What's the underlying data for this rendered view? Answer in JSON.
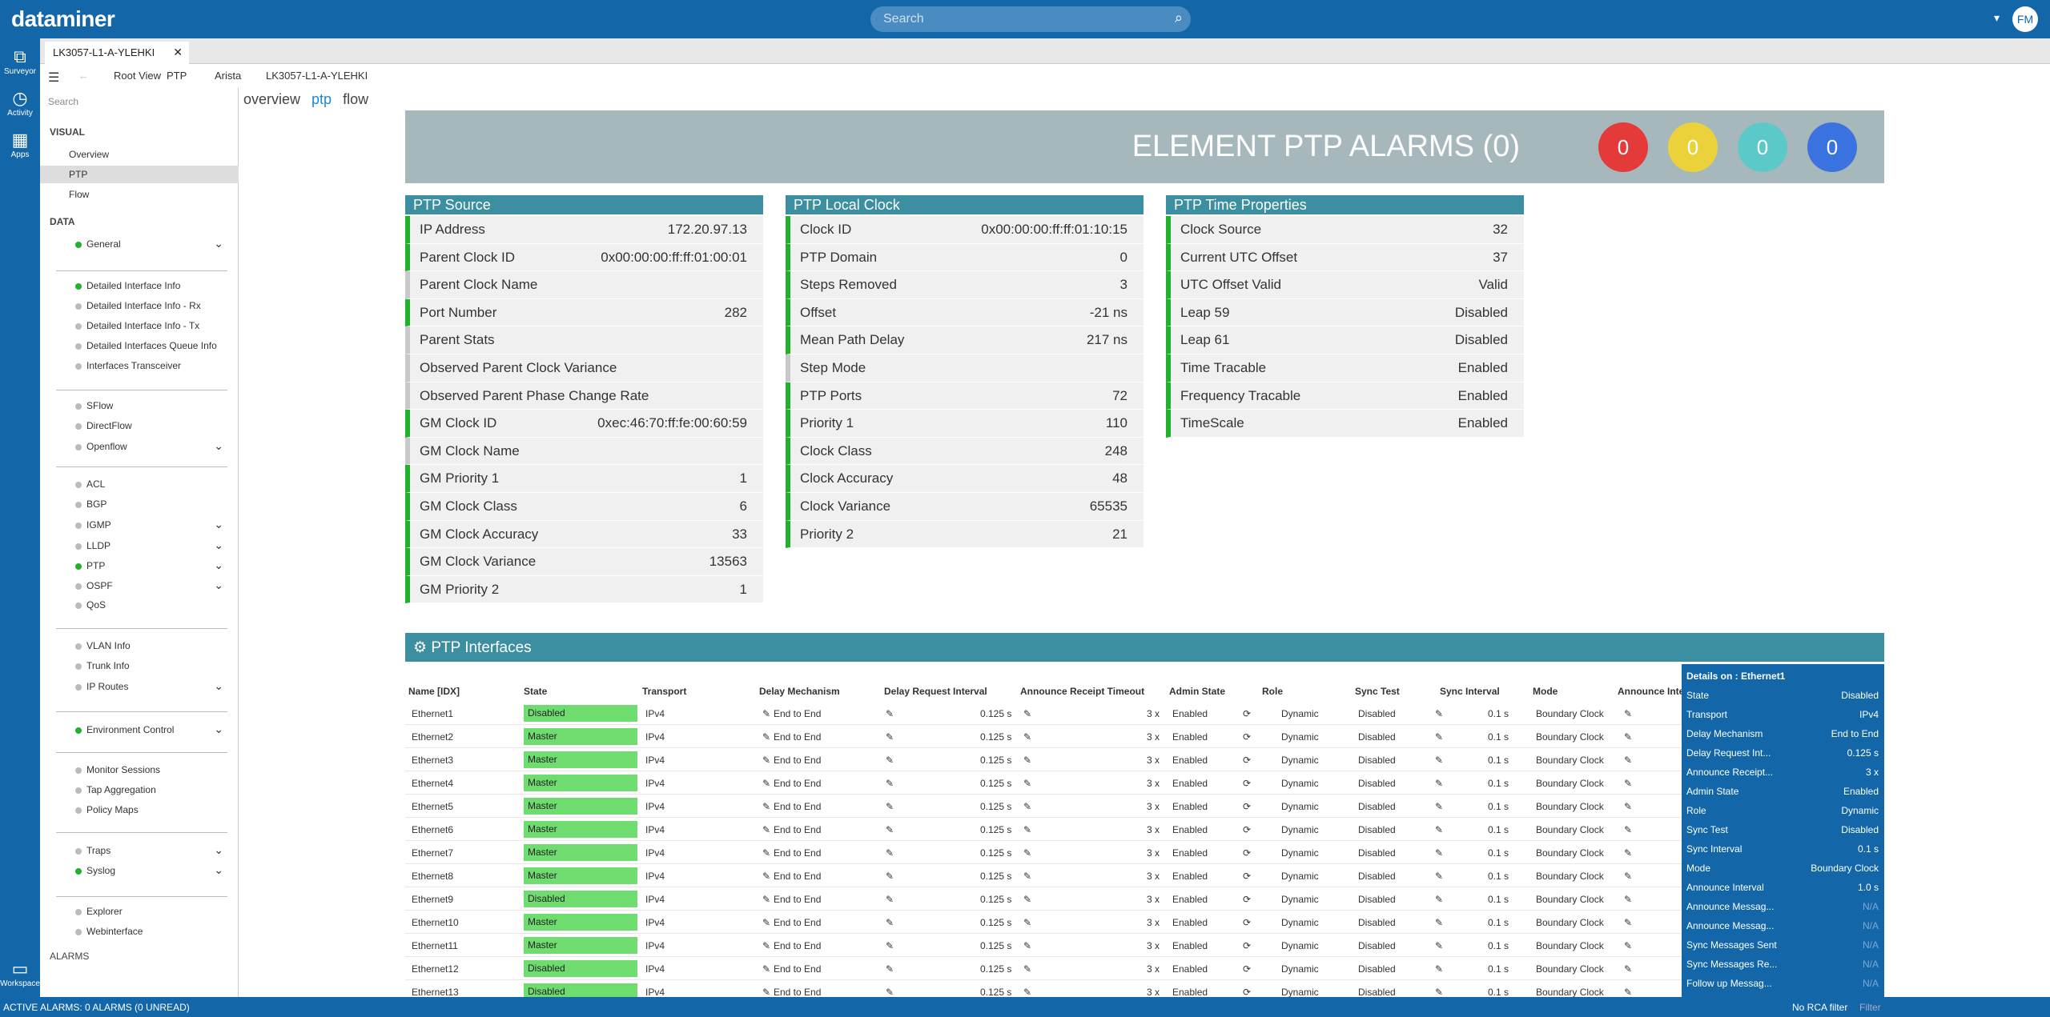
{
  "app": {
    "logo": "dataminer",
    "search_placeholder": "Search",
    "avatar": "FM"
  },
  "leftnav": [
    {
      "label": "Surveyor",
      "icon": "surveyor-icon"
    },
    {
      "label": "Activity",
      "icon": "activity-icon"
    },
    {
      "label": "Apps",
      "icon": "apps-icon"
    },
    {
      "label": "Workspace",
      "icon": "workspace-icon"
    }
  ],
  "tab": {
    "label": "LK3057-L1-A-YLEHKI"
  },
  "breadcrumb": [
    "Root View",
    "PTP",
    "Arista",
    "LK3057-L1-A-YLEHKI"
  ],
  "sidebar": {
    "search_placeholder": "Search",
    "visual_label": "VISUAL",
    "visual_items": [
      "Overview",
      "PTP",
      "Flow"
    ],
    "data_label": "DATA",
    "alarms_label": "ALARMS",
    "items": [
      "General",
      "Detailed Interface Info",
      "Detailed Interface Info - Rx",
      "Detailed Interface Info - Tx",
      "Detailed Interfaces Queue Info",
      "Interfaces Transceiver",
      "SFlow",
      "DirectFlow",
      "Openflow",
      "ACL",
      "BGP",
      "IGMP",
      "LLDP",
      "PTP",
      "OSPF",
      "QoS",
      "VLAN Info",
      "Trunk Info",
      "IP Routes",
      "Environment Control",
      "Monitor Sessions",
      "Tap Aggregation",
      "Policy Maps",
      "Traps",
      "Syslog",
      "Explorer",
      "Webinterface"
    ]
  },
  "subtabs": [
    "overview",
    "ptp",
    "flow"
  ],
  "header": {
    "title": "ELEMENT PTP ALARMS (0)",
    "bubbles": [
      "0",
      "0",
      "0",
      "0"
    ],
    "bubble_colors": [
      "#e53a3a",
      "#ecd23a",
      "#5cc9c9",
      "#3a72e0"
    ]
  },
  "ptp_source": {
    "title": "PTP Source",
    "rows": [
      [
        "IP Address",
        "172.20.97.13"
      ],
      [
        "Parent Clock ID",
        "0x00:00:00:ff:ff:01:00:01"
      ],
      [
        "Parent Clock Name",
        ""
      ],
      [
        "Port Number",
        "282"
      ],
      [
        "Parent Stats",
        ""
      ],
      [
        "Observed Parent Clock Variance",
        ""
      ],
      [
        "Observed Parent Phase Change Rate",
        ""
      ],
      [
        "GM Clock ID",
        "0xec:46:70:ff:fe:00:60:59"
      ],
      [
        "GM Clock Name",
        ""
      ],
      [
        "GM Priority 1",
        "1"
      ],
      [
        "GM Clock Class",
        "6"
      ],
      [
        "GM Clock Accuracy",
        "33"
      ],
      [
        "GM Clock Variance",
        "13563"
      ],
      [
        "GM Priority 2",
        "1"
      ]
    ]
  },
  "ptp_local": {
    "title": "PTP Local Clock",
    "rows": [
      [
        "Clock ID",
        "0x00:00:00:ff:ff:01:10:15"
      ],
      [
        "PTP Domain",
        "0"
      ],
      [
        "Steps Removed",
        "3"
      ],
      [
        "Offset",
        "-21 ns"
      ],
      [
        "Mean Path Delay",
        "217 ns"
      ],
      [
        "Step Mode",
        ""
      ],
      [
        "PTP Ports",
        "72"
      ],
      [
        "Priority 1",
        "110"
      ],
      [
        "Clock Class",
        "248"
      ],
      [
        "Clock Accuracy",
        "48"
      ],
      [
        "Clock Variance",
        "65535"
      ],
      [
        "Priority 2",
        "21"
      ]
    ]
  },
  "ptp_time": {
    "title": "PTP Time Properties",
    "rows": [
      [
        "Clock Source",
        "32"
      ],
      [
        "Current UTC Offset",
        "37"
      ],
      [
        "UTC Offset Valid",
        "Valid"
      ],
      [
        "Leap 59",
        "Disabled"
      ],
      [
        "Leap 61",
        "Disabled"
      ],
      [
        "Time Tracable",
        "Enabled"
      ],
      [
        "Frequency Tracable",
        "Enabled"
      ],
      [
        "TimeScale",
        "Enabled"
      ]
    ]
  },
  "interfaces": {
    "title": "PTP Interfaces",
    "columns": [
      "Name [IDX]",
      "State",
      "Transport",
      "Delay Mechanism",
      "Delay Request Interval",
      "Announce Receipt Timeout",
      "Admin State",
      "Role",
      "Sync Test",
      "Sync Interval",
      "Mode",
      "Announce Inte"
    ],
    "rows": [
      [
        "Ethernet1",
        "Disabled"
      ],
      [
        "Ethernet2",
        "Master"
      ],
      [
        "Ethernet3",
        "Master"
      ],
      [
        "Ethernet4",
        "Master"
      ],
      [
        "Ethernet5",
        "Master"
      ],
      [
        "Ethernet6",
        "Master"
      ],
      [
        "Ethernet7",
        "Master"
      ],
      [
        "Ethernet8",
        "Master"
      ],
      [
        "Ethernet9",
        "Disabled"
      ],
      [
        "Ethernet10",
        "Master"
      ],
      [
        "Ethernet11",
        "Master"
      ],
      [
        "Ethernet12",
        "Disabled"
      ],
      [
        "Ethernet13",
        "Disabled"
      ]
    ],
    "common": {
      "transport": "IPv4",
      "delay": "End to End",
      "dri": "0.125 s",
      "art": "3 x",
      "admin": "Enabled",
      "role": "Dynamic",
      "sync_test": "Disabled",
      "sync_int": "0.1 s",
      "mode": "Boundary Clock"
    }
  },
  "details": {
    "title": "Details on : Ethernet1",
    "rows": [
      [
        "State",
        "Disabled"
      ],
      [
        "Transport",
        "IPv4"
      ],
      [
        "Delay Mechanism",
        "End to End"
      ],
      [
        "Delay Request Int...",
        "0.125 s"
      ],
      [
        "Announce Receipt...",
        "3 x"
      ],
      [
        "Admin State",
        "Enabled"
      ],
      [
        "Role",
        "Dynamic"
      ],
      [
        "Sync Test",
        "Disabled"
      ],
      [
        "Sync Interval",
        "0.1 s"
      ],
      [
        "Mode",
        "Boundary Clock"
      ],
      [
        "Announce Interval",
        "1.0 s"
      ],
      [
        "Announce Messag...",
        "N/A"
      ],
      [
        "Announce Messag...",
        "N/A"
      ],
      [
        "Sync Messages Sent",
        "N/A"
      ],
      [
        "Sync Messages Re...",
        "N/A"
      ],
      [
        "Follow up Messag...",
        "N/A"
      ]
    ]
  },
  "status": {
    "left": "ACTIVE ALARMS: 0 ALARMS (0 UNREAD)",
    "rca": "No RCA filter",
    "filter": "Filter"
  }
}
